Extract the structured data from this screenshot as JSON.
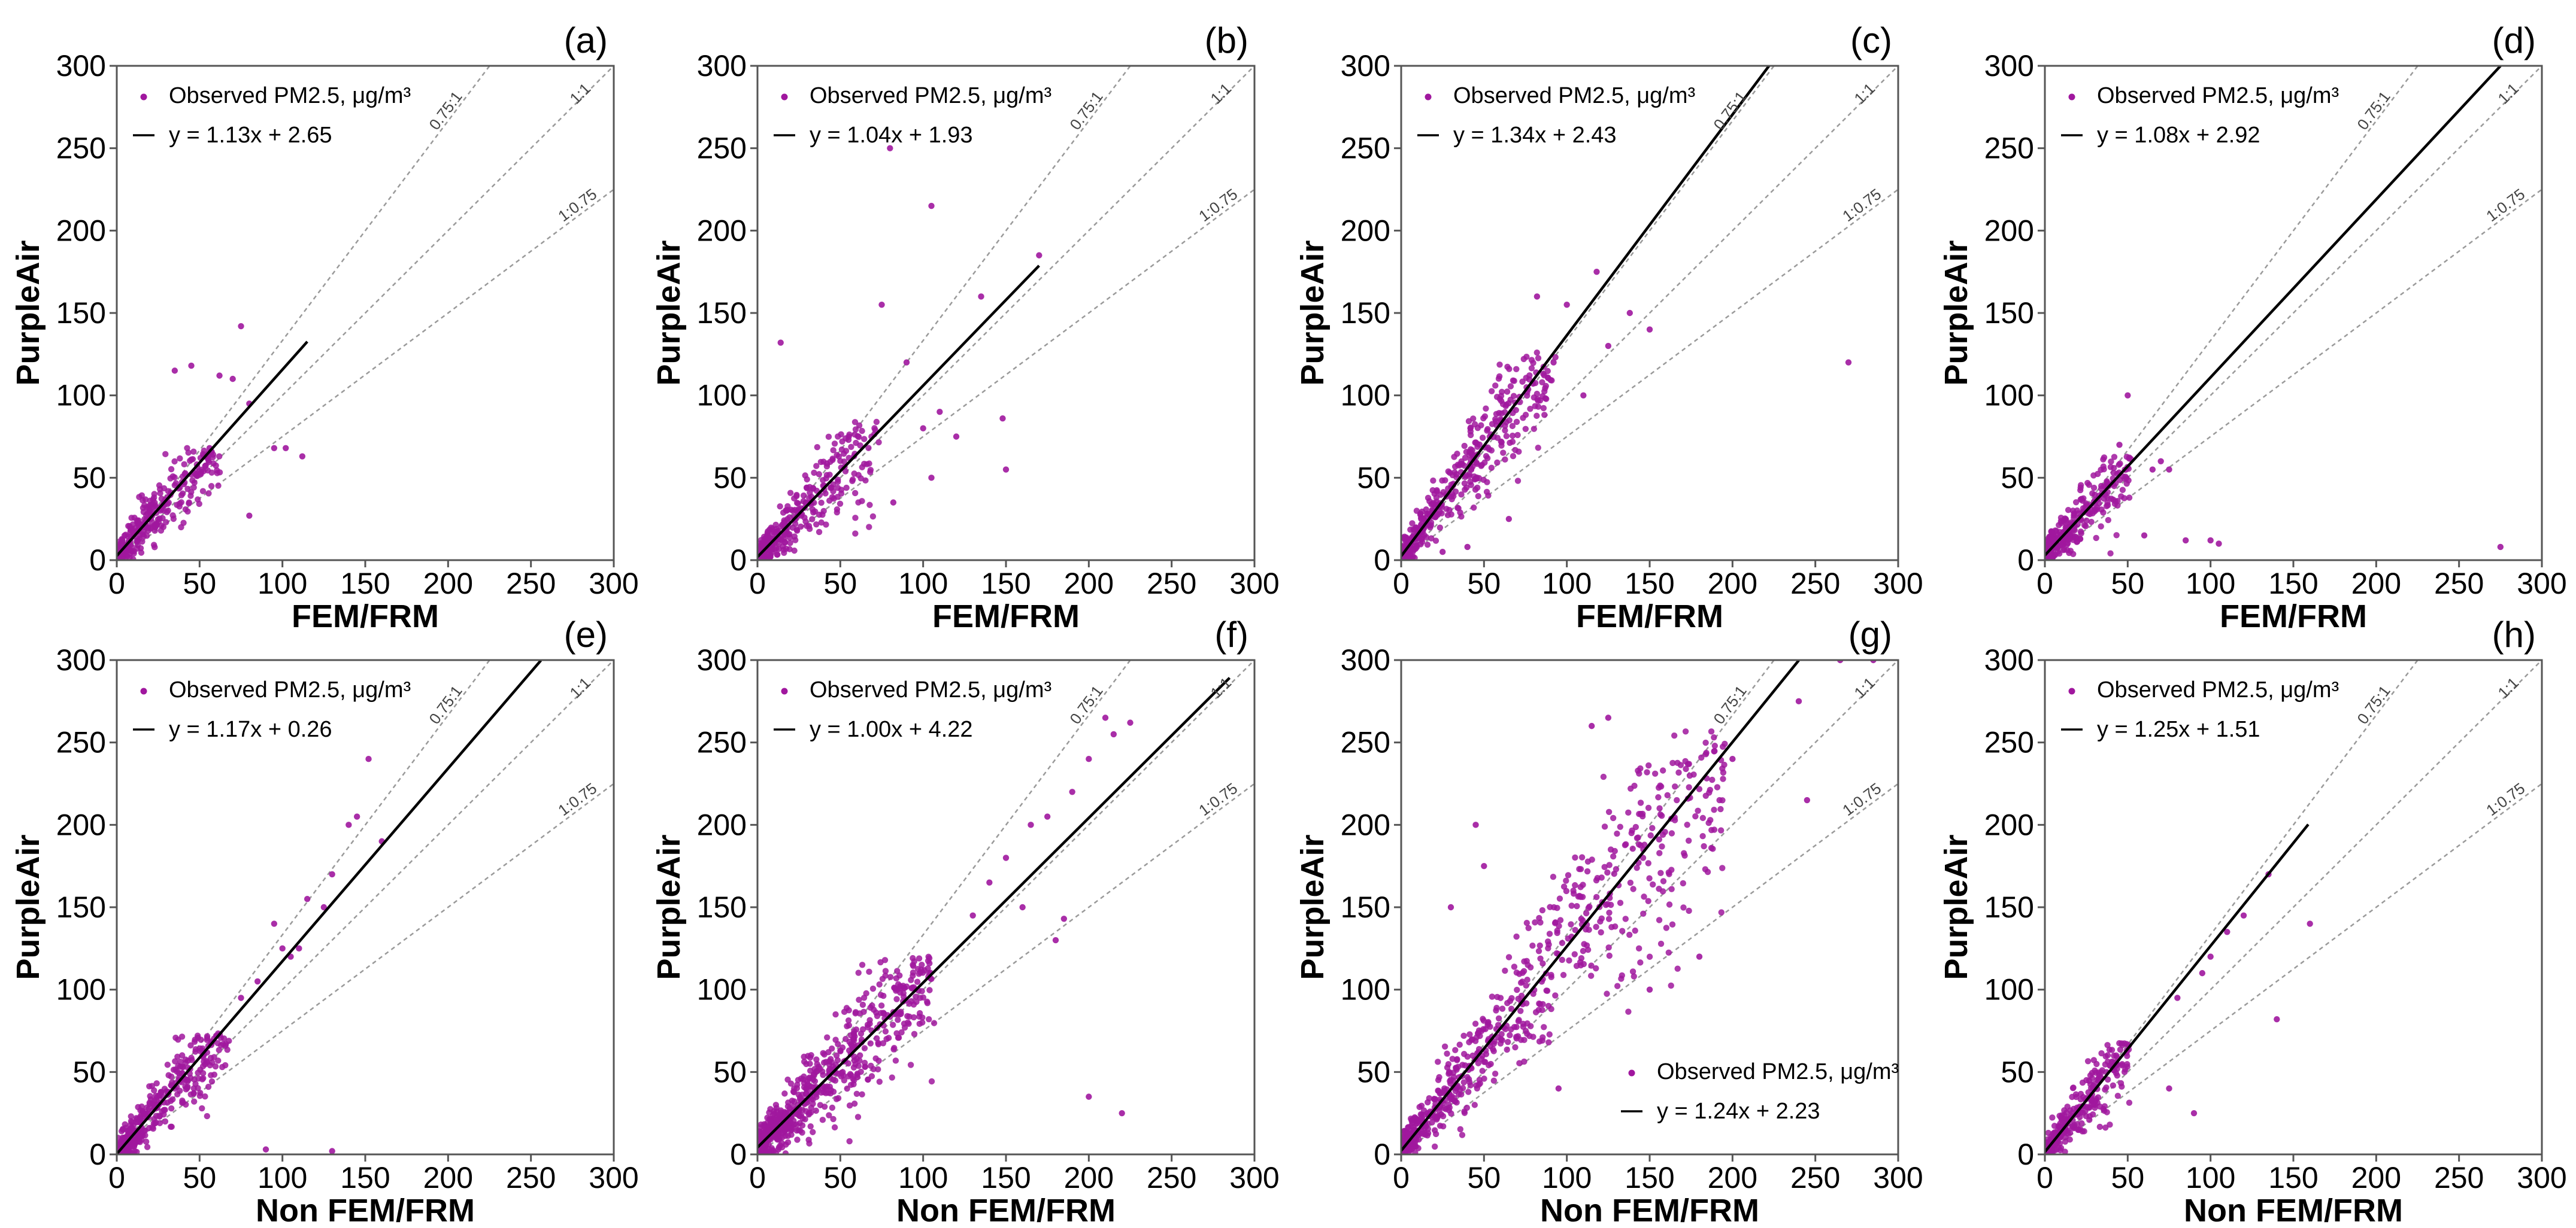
{
  "chart_data": [
    {
      "type": "scatter",
      "panel_label": "(a)",
      "xlabel": "FEM/FRM",
      "ylabel": "PurpleAir",
      "xlim": [
        0,
        300
      ],
      "ylim": [
        0,
        300
      ],
      "xticks": [
        "0",
        "50",
        "100",
        "150",
        "200",
        "250",
        "300"
      ],
      "yticks": [
        "0",
        "50",
        "100",
        "150",
        "200",
        "250",
        "300"
      ],
      "legend": {
        "points_label": "Observed PM2.5, μg/m³",
        "fit_label": "y = 1.13x + 2.65",
        "placement": "top-left"
      },
      "fit": {
        "slope": 1.13,
        "intercept": 2.65,
        "x_range": [
          0,
          115
        ]
      },
      "reference_lines": [
        {
          "label": "0.75:1",
          "slope": 1.333
        },
        {
          "label": "1:1",
          "slope": 1.0
        },
        {
          "label": "1:0.75",
          "slope": 0.75
        }
      ],
      "point_cloud": {
        "x_max": 60,
        "y_max": 65,
        "count": 300,
        "seed": 11
      },
      "outliers": [
        [
          75,
          142
        ],
        [
          62,
          112
        ],
        [
          45,
          118
        ],
        [
          35,
          115
        ],
        [
          70,
          110
        ],
        [
          80,
          95
        ],
        [
          95,
          68
        ],
        [
          112,
          63
        ],
        [
          56,
          68
        ],
        [
          102,
          68
        ],
        [
          80,
          27
        ]
      ]
    },
    {
      "type": "scatter",
      "panel_label": "(b)",
      "xlabel": "FEM/FRM",
      "ylabel": "PurpleAir",
      "xlim": [
        0,
        300
      ],
      "ylim": [
        0,
        300
      ],
      "xticks": [
        "0",
        "50",
        "100",
        "150",
        "200",
        "250",
        "300"
      ],
      "yticks": [
        "0",
        "50",
        "100",
        "150",
        "200",
        "250",
        "300"
      ],
      "legend": {
        "points_label": "Observed PM2.5, μg/m³",
        "fit_label": "y = 1.04x + 1.93",
        "placement": "top-left"
      },
      "fit": {
        "slope": 1.04,
        "intercept": 1.93,
        "x_range": [
          0,
          170
        ]
      },
      "reference_lines": [
        {
          "label": "0.75:1",
          "slope": 1.333
        },
        {
          "label": "1:1",
          "slope": 1.0
        },
        {
          "label": "1:0.75",
          "slope": 0.75
        }
      ],
      "point_cloud": {
        "x_max": 70,
        "y_max": 80,
        "count": 320,
        "seed": 23
      },
      "outliers": [
        [
          80,
          250
        ],
        [
          105,
          215
        ],
        [
          170,
          185
        ],
        [
          135,
          160
        ],
        [
          75,
          155
        ],
        [
          14,
          132
        ],
        [
          90,
          120
        ],
        [
          110,
          90
        ],
        [
          100,
          80
        ],
        [
          148,
          86
        ],
        [
          120,
          75
        ],
        [
          150,
          55
        ],
        [
          82,
          35
        ],
        [
          105,
          50
        ]
      ]
    },
    {
      "type": "scatter",
      "panel_label": "(c)",
      "xlabel": "FEM/FRM",
      "ylabel": "PurpleAir",
      "xlim": [
        0,
        300
      ],
      "ylim": [
        0,
        300
      ],
      "xticks": [
        "0",
        "50",
        "100",
        "150",
        "200",
        "250",
        "300"
      ],
      "yticks": [
        "0",
        "50",
        "100",
        "150",
        "200",
        "250",
        "300"
      ],
      "legend": {
        "points_label": "Observed PM2.5, μg/m³",
        "fit_label": "y = 1.34x + 2.43",
        "placement": "top-left"
      },
      "fit": {
        "slope": 1.34,
        "intercept": 2.43,
        "x_range": [
          0,
          222
        ]
      },
      "reference_lines": [
        {
          "label": "0.75:1",
          "slope": 1.333
        },
        {
          "label": "1:1",
          "slope": 1.0
        },
        {
          "label": "1:0.75",
          "slope": 0.75
        }
      ],
      "point_cloud": {
        "x_max": 90,
        "y_max": 120,
        "count": 420,
        "seed": 37
      },
      "outliers": [
        [
          118,
          175
        ],
        [
          138,
          150
        ],
        [
          270,
          120
        ],
        [
          100,
          155
        ],
        [
          125,
          130
        ],
        [
          110,
          100
        ],
        [
          82,
          160
        ],
        [
          40,
          8
        ],
        [
          25,
          5
        ],
        [
          65,
          25
        ],
        [
          92,
          120
        ],
        [
          150,
          140
        ]
      ]
    },
    {
      "type": "scatter",
      "panel_label": "(d)",
      "xlabel": "FEM/FRM",
      "ylabel": "PurpleAir",
      "xlim": [
        0,
        300
      ],
      "ylim": [
        0,
        300
      ],
      "xticks": [
        "0",
        "50",
        "100",
        "150",
        "200",
        "250",
        "300"
      ],
      "yticks": [
        "0",
        "50",
        "100",
        "150",
        "200",
        "250",
        "300"
      ],
      "legend": {
        "points_label": "Observed PM2.5, μg/m³",
        "fit_label": "y = 1.08x + 2.92",
        "placement": "top-left"
      },
      "fit": {
        "slope": 1.08,
        "intercept": 2.92,
        "x_range": [
          0,
          275
        ]
      },
      "reference_lines": [
        {
          "label": "0.75:1",
          "slope": 1.333
        },
        {
          "label": "1:1",
          "slope": 1.0
        },
        {
          "label": "1:0.75",
          "slope": 0.75
        }
      ],
      "point_cloud": {
        "x_max": 50,
        "y_max": 60,
        "count": 300,
        "seed": 41
      },
      "outliers": [
        [
          50,
          100
        ],
        [
          275,
          8
        ],
        [
          100,
          12
        ],
        [
          105,
          10
        ],
        [
          65,
          55
        ],
        [
          75,
          55
        ],
        [
          70,
          60
        ],
        [
          45,
          70
        ],
        [
          60,
          15
        ],
        [
          85,
          12
        ]
      ]
    },
    {
      "type": "scatter",
      "panel_label": "(e)",
      "xlabel": "Non FEM/FRM",
      "ylabel": "PurpleAir",
      "xlim": [
        0,
        300
      ],
      "ylim": [
        0,
        300
      ],
      "xticks": [
        "0",
        "50",
        "100",
        "150",
        "200",
        "250",
        "300"
      ],
      "yticks": [
        "0",
        "50",
        "100",
        "150",
        "200",
        "250",
        "300"
      ],
      "legend": {
        "points_label": "Observed PM2.5, μg/m³",
        "fit_label": "y = 1.17x + 0.26",
        "placement": "top-left"
      },
      "fit": {
        "slope": 1.17,
        "intercept": 0.26,
        "x_range": [
          0,
          256
        ]
      },
      "reference_lines": [
        {
          "label": "0.75:1",
          "slope": 1.333
        },
        {
          "label": "1:1",
          "slope": 1.0
        },
        {
          "label": "1:0.75",
          "slope": 0.75
        }
      ],
      "point_cloud": {
        "x_max": 65,
        "y_max": 70,
        "count": 360,
        "seed": 53
      },
      "outliers": [
        [
          152,
          240
        ],
        [
          100,
          125
        ],
        [
          130,
          170
        ],
        [
          140,
          200
        ],
        [
          145,
          205
        ],
        [
          95,
          140
        ],
        [
          115,
          155
        ],
        [
          85,
          105
        ],
        [
          125,
          150
        ],
        [
          110,
          125
        ],
        [
          90,
          3
        ],
        [
          130,
          2
        ],
        [
          160,
          190
        ],
        [
          75,
          95
        ],
        [
          105,
          120
        ]
      ]
    },
    {
      "type": "scatter",
      "panel_label": "(f)",
      "xlabel": "Non FEM/FRM",
      "ylabel": "PurpleAir",
      "xlim": [
        0,
        300
      ],
      "ylim": [
        0,
        300
      ],
      "xticks": [
        "0",
        "50",
        "100",
        "150",
        "200",
        "250",
        "300"
      ],
      "yticks": [
        "0",
        "50",
        "100",
        "150",
        "200",
        "250",
        "300"
      ],
      "legend": {
        "points_label": "Observed PM2.5, μg/m³",
        "fit_label": "y = 1.00x + 4.22",
        "placement": "top-left"
      },
      "fit": {
        "slope": 1.0,
        "intercept": 4.22,
        "x_range": [
          0,
          285
        ]
      },
      "reference_lines": [
        {
          "label": "0.75:1",
          "slope": 1.333
        },
        {
          "label": "1:1",
          "slope": 1.0
        },
        {
          "label": "1:0.75",
          "slope": 0.75
        }
      ],
      "point_cloud": {
        "x_max": 105,
        "y_max": 115,
        "count": 650,
        "seed": 67
      },
      "outliers": [
        [
          210,
          265
        ],
        [
          225,
          262
        ],
        [
          200,
          240
        ],
        [
          190,
          220
        ],
        [
          175,
          205
        ],
        [
          150,
          180
        ],
        [
          140,
          165
        ],
        [
          160,
          150
        ],
        [
          130,
          145
        ],
        [
          180,
          130
        ],
        [
          200,
          35
        ],
        [
          220,
          25
        ],
        [
          185,
          143
        ],
        [
          165,
          200
        ],
        [
          215,
          255
        ]
      ]
    },
    {
      "type": "scatter",
      "panel_label": "(g)",
      "xlabel": "Non FEM/FRM",
      "ylabel": "PurpleAir",
      "xlim": [
        0,
        300
      ],
      "ylim": [
        0,
        300
      ],
      "xticks": [
        "0",
        "50",
        "100",
        "150",
        "200",
        "250",
        "300"
      ],
      "yticks": [
        "0",
        "50",
        "100",
        "150",
        "200",
        "250",
        "300"
      ],
      "legend": {
        "points_label": "Observed PM2.5, μg/m³",
        "fit_label": "y = 1.24x + 2.23",
        "placement": "bottom-right"
      },
      "fit": {
        "slope": 1.24,
        "intercept": 2.23,
        "x_range": [
          0,
          240
        ]
      },
      "reference_lines": [
        {
          "label": "0.75:1",
          "slope": 1.333
        },
        {
          "label": "1:1",
          "slope": 1.0
        },
        {
          "label": "1:0.75",
          "slope": 0.75
        }
      ],
      "point_cloud": {
        "x_max": 195,
        "y_max": 245,
        "count": 700,
        "seed": 79
      },
      "outliers": [
        [
          285,
          300
        ],
        [
          240,
          275
        ],
        [
          265,
          300
        ],
        [
          50,
          175
        ],
        [
          30,
          150
        ],
        [
          45,
          200
        ],
        [
          115,
          260
        ],
        [
          125,
          265
        ],
        [
          200,
          240
        ],
        [
          180,
          120
        ],
        [
          150,
          100
        ],
        [
          95,
          40
        ],
        [
          245,
          215
        ]
      ]
    },
    {
      "type": "scatter",
      "panel_label": "(h)",
      "xlabel": "Non FEM/FRM",
      "ylabel": "PurpleAir",
      "xlim": [
        0,
        300
      ],
      "ylim": [
        0,
        300
      ],
      "xticks": [
        "0",
        "50",
        "100",
        "150",
        "200",
        "250",
        "300"
      ],
      "yticks": [
        "0",
        "50",
        "100",
        "150",
        "200",
        "250",
        "300"
      ],
      "legend": {
        "points_label": "Observed PM2.5, μg/m³",
        "fit_label": "y = 1.25x + 1.51",
        "placement": "top-left"
      },
      "fit": {
        "slope": 1.25,
        "intercept": 1.51,
        "x_range": [
          0,
          159
        ]
      },
      "reference_lines": [
        {
          "label": "0.75:1",
          "slope": 1.333
        },
        {
          "label": "1:1",
          "slope": 1.0
        },
        {
          "label": "1:0.75",
          "slope": 0.75
        }
      ],
      "point_cloud": {
        "x_max": 50,
        "y_max": 65,
        "count": 300,
        "seed": 97
      },
      "outliers": [
        [
          135,
          170
        ],
        [
          140,
          82
        ],
        [
          160,
          140
        ],
        [
          120,
          145
        ],
        [
          100,
          120
        ],
        [
          80,
          95
        ],
        [
          90,
          25
        ],
        [
          75,
          40
        ],
        [
          110,
          135
        ],
        [
          95,
          110
        ]
      ]
    }
  ],
  "colors": {
    "points": "#a0179e",
    "fit": "#000000",
    "reference": "#9a9a9a"
  }
}
